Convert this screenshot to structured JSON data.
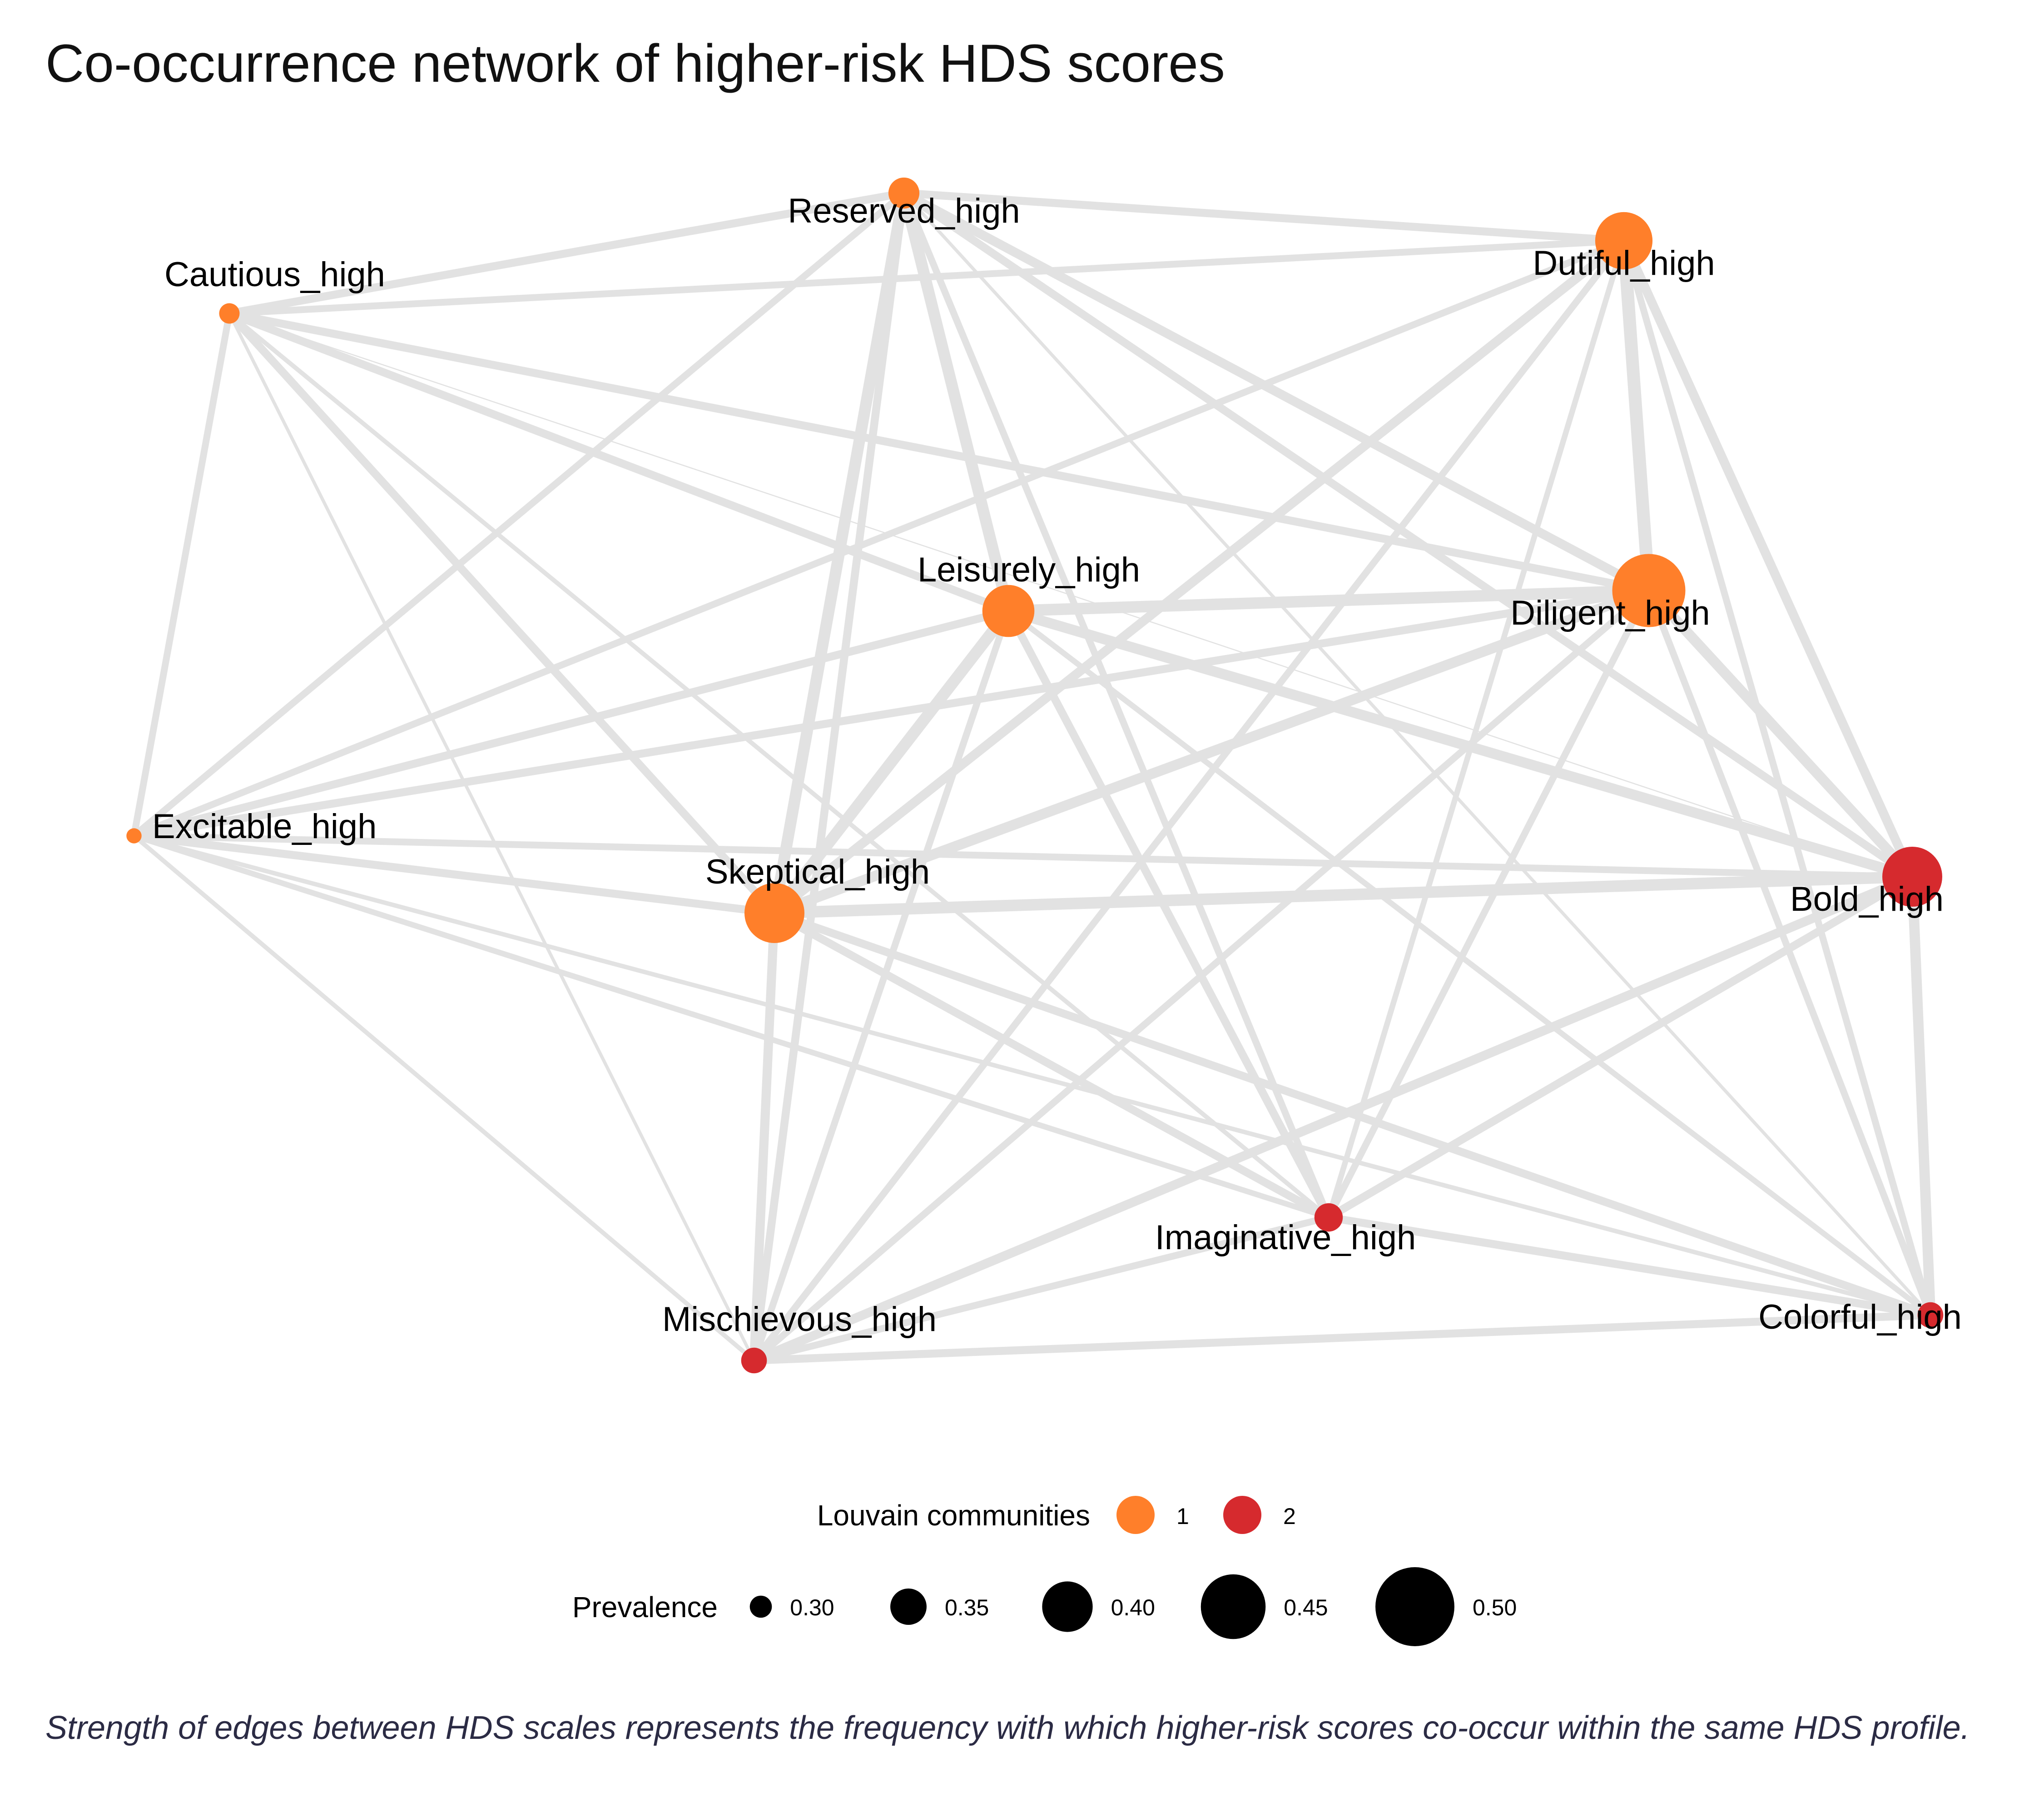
{
  "title": "Co-occurrence network of higher-risk HDS scores",
  "caption": "Strength of edges between HDS scales represents the frequency with which higher-risk scores co-occur within the same HDS profile.",
  "community_colors": {
    "1": "#FF7F2A",
    "2": "#D62A2E"
  },
  "edge_color": "#e2e2e2",
  "nodes": [
    {
      "id": "Reserved_high",
      "label": "Reserved_high",
      "community": 1,
      "prevalence": 0.34
    },
    {
      "id": "Dutiful_high",
      "label": "Dutiful_high",
      "community": 1,
      "prevalence": 0.44
    },
    {
      "id": "Cautious_high",
      "label": "Cautious_high",
      "community": 1,
      "prevalence": 0.3
    },
    {
      "id": "Leisurely_high",
      "label": "Leisurely_high",
      "community": 1,
      "prevalence": 0.42
    },
    {
      "id": "Diligent_high",
      "label": "Diligent_high",
      "community": 1,
      "prevalence": 0.5
    },
    {
      "id": "Excitable_high",
      "label": "Excitable_high",
      "community": 1,
      "prevalence": 0.28
    },
    {
      "id": "Skeptical_high",
      "label": "Skeptical_high",
      "community": 1,
      "prevalence": 0.45
    },
    {
      "id": "Bold_high",
      "label": "Bold_high",
      "community": 2,
      "prevalence": 0.45
    },
    {
      "id": "Imaginative_high",
      "label": "Imaginative_high",
      "community": 2,
      "prevalence": 0.33
    },
    {
      "id": "Mischievous_high",
      "label": "Mischievous_high",
      "community": 2,
      "prevalence": 0.32
    },
    {
      "id": "Colorful_high",
      "label": "Colorful_high",
      "community": 2,
      "prevalence": 0.32
    }
  ],
  "edges": [
    {
      "source": "Reserved_high",
      "target": "Dutiful_high",
      "weight": 0.6
    },
    {
      "source": "Reserved_high",
      "target": "Cautious_high",
      "weight": 0.6
    },
    {
      "source": "Reserved_high",
      "target": "Leisurely_high",
      "weight": 0.9
    },
    {
      "source": "Reserved_high",
      "target": "Diligent_high",
      "weight": 0.7
    },
    {
      "source": "Reserved_high",
      "target": "Excitable_high",
      "weight": 0.5
    },
    {
      "source": "Reserved_high",
      "target": "Skeptical_high",
      "weight": 0.9
    },
    {
      "source": "Reserved_high",
      "target": "Bold_high",
      "weight": 0.6
    },
    {
      "source": "Reserved_high",
      "target": "Imaginative_high",
      "weight": 0.5
    },
    {
      "source": "Reserved_high",
      "target": "Mischievous_high",
      "weight": 0.6
    },
    {
      "source": "Reserved_high",
      "target": "Colorful_high",
      "weight": 0.2
    },
    {
      "source": "Dutiful_high",
      "target": "Cautious_high",
      "weight": 0.5
    },
    {
      "source": "Dutiful_high",
      "target": "Diligent_high",
      "weight": 1.0
    },
    {
      "source": "Dutiful_high",
      "target": "Excitable_high",
      "weight": 0.5
    },
    {
      "source": "Dutiful_high",
      "target": "Skeptical_high",
      "weight": 0.7
    },
    {
      "source": "Dutiful_high",
      "target": "Bold_high",
      "weight": 0.7
    },
    {
      "source": "Dutiful_high",
      "target": "Imaginative_high",
      "weight": 0.4
    },
    {
      "source": "Dutiful_high",
      "target": "Mischievous_high",
      "weight": 0.5
    },
    {
      "source": "Dutiful_high",
      "target": "Colorful_high",
      "weight": 0.5
    },
    {
      "source": "Cautious_high",
      "target": "Leisurely_high",
      "weight": 0.6
    },
    {
      "source": "Cautious_high",
      "target": "Diligent_high",
      "weight": 0.6
    },
    {
      "source": "Cautious_high",
      "target": "Excitable_high",
      "weight": 0.5
    },
    {
      "source": "Cautious_high",
      "target": "Skeptical_high",
      "weight": 0.6
    },
    {
      "source": "Cautious_high",
      "target": "Bold_high",
      "weight": 0.02
    },
    {
      "source": "Cautious_high",
      "target": "Imaginative_high",
      "weight": 0.3
    },
    {
      "source": "Cautious_high",
      "target": "Mischievous_high",
      "weight": 0.2
    },
    {
      "source": "Leisurely_high",
      "target": "Diligent_high",
      "weight": 0.9
    },
    {
      "source": "Leisurely_high",
      "target": "Excitable_high",
      "weight": 0.6
    },
    {
      "source": "Leisurely_high",
      "target": "Skeptical_high",
      "weight": 0.9
    },
    {
      "source": "Leisurely_high",
      "target": "Bold_high",
      "weight": 0.8
    },
    {
      "source": "Leisurely_high",
      "target": "Imaginative_high",
      "weight": 0.6
    },
    {
      "source": "Leisurely_high",
      "target": "Mischievous_high",
      "weight": 0.5
    },
    {
      "source": "Leisurely_high",
      "target": "Colorful_high",
      "weight": 0.4
    },
    {
      "source": "Diligent_high",
      "target": "Excitable_high",
      "weight": 0.6
    },
    {
      "source": "Diligent_high",
      "target": "Skeptical_high",
      "weight": 0.8
    },
    {
      "source": "Diligent_high",
      "target": "Bold_high",
      "weight": 0.8
    },
    {
      "source": "Diligent_high",
      "target": "Imaginative_high",
      "weight": 0.5
    },
    {
      "source": "Diligent_high",
      "target": "Mischievous_high",
      "weight": 0.5
    },
    {
      "source": "Diligent_high",
      "target": "Colorful_high",
      "weight": 0.5
    },
    {
      "source": "Excitable_high",
      "target": "Skeptical_high",
      "weight": 0.6
    },
    {
      "source": "Excitable_high",
      "target": "Bold_high",
      "weight": 0.5
    },
    {
      "source": "Excitable_high",
      "target": "Imaginative_high",
      "weight": 0.4
    },
    {
      "source": "Excitable_high",
      "target": "Mischievous_high",
      "weight": 0.3
    },
    {
      "source": "Excitable_high",
      "target": "Colorful_high",
      "weight": 0.3
    },
    {
      "source": "Skeptical_high",
      "target": "Bold_high",
      "weight": 0.9
    },
    {
      "source": "Skeptical_high",
      "target": "Imaginative_high",
      "weight": 0.6
    },
    {
      "source": "Skeptical_high",
      "target": "Mischievous_high",
      "weight": 0.7
    },
    {
      "source": "Skeptical_high",
      "target": "Colorful_high",
      "weight": 0.6
    },
    {
      "source": "Bold_high",
      "target": "Imaginative_high",
      "weight": 0.6
    },
    {
      "source": "Bold_high",
      "target": "Mischievous_high",
      "weight": 0.7
    },
    {
      "source": "Bold_high",
      "target": "Colorful_high",
      "weight": 0.8
    },
    {
      "source": "Imaginative_high",
      "target": "Mischievous_high",
      "weight": 0.5
    },
    {
      "source": "Imaginative_high",
      "target": "Colorful_high",
      "weight": 0.6
    },
    {
      "source": "Mischievous_high",
      "target": "Colorful_high",
      "weight": 0.6
    }
  ],
  "legend": {
    "community_title": "Louvain communities",
    "community_items": [
      {
        "label": "1",
        "community": 1
      },
      {
        "label": "2",
        "community": 2
      }
    ],
    "prevalence_title": "Prevalence",
    "prevalence_items": [
      {
        "label": "0.30",
        "value": 0.3
      },
      {
        "label": "0.35",
        "value": 0.35
      },
      {
        "label": "0.40",
        "value": 0.4
      },
      {
        "label": "0.45",
        "value": 0.45
      },
      {
        "label": "0.50",
        "value": 0.5
      }
    ]
  }
}
